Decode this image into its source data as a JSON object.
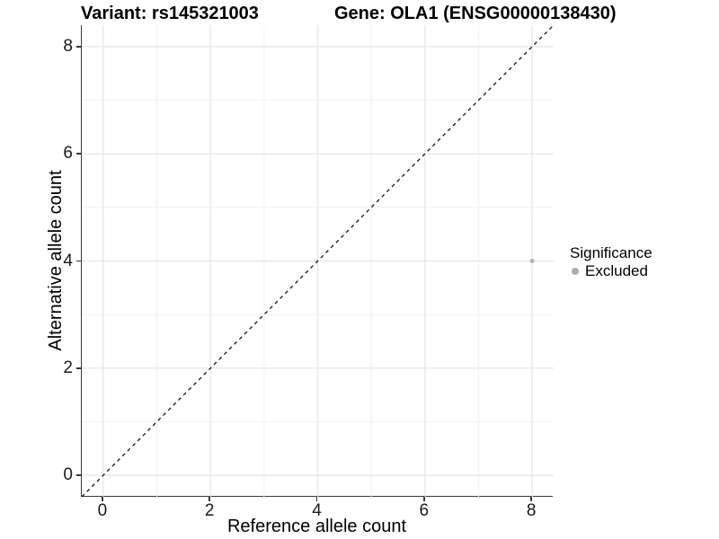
{
  "chart_data": {
    "type": "scatter",
    "title_left": "Variant: rs145321003",
    "title_right": "Gene: OLA1 (ENSG00000138430)",
    "xlabel": "Reference allele count",
    "ylabel": "Alternative allele count",
    "xlim": [
      -0.4,
      8.4
    ],
    "ylim": [
      -0.4,
      8.4
    ],
    "x_ticks": [
      0,
      2,
      4,
      6,
      8
    ],
    "y_ticks": [
      0,
      2,
      4,
      6,
      8
    ],
    "x_minor_ticks": [
      1,
      3,
      5,
      7
    ],
    "y_minor_ticks": [
      1,
      3,
      5,
      7
    ],
    "grid": "on",
    "points": [
      {
        "x": 8,
        "y": 4,
        "significance": "Excluded"
      }
    ],
    "point_style": {
      "color": "#b3b3b3",
      "radius": 2.5
    },
    "reference_line": {
      "slope": 1,
      "intercept": 0,
      "line_style": "dashed",
      "color": "#000000"
    },
    "legend": {
      "title": "Significance",
      "position": "right",
      "items": [
        {
          "label": "Excluded",
          "color": "#adadad"
        }
      ]
    },
    "colors": {
      "axis_line": "#383838",
      "grid_major": "#e4e4e4",
      "grid_minor": "#f1f1f1",
      "text": "#000000"
    }
  }
}
